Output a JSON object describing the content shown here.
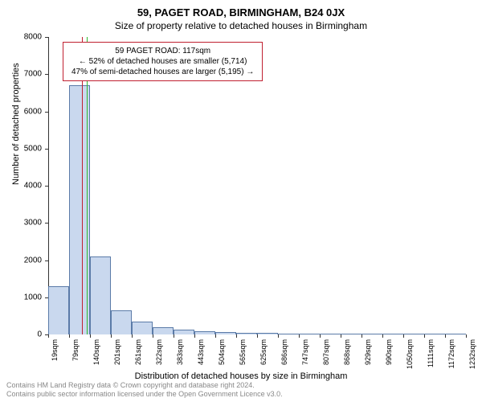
{
  "header": {
    "title": "59, PAGET ROAD, BIRMINGHAM, B24 0JX",
    "subtitle": "Size of property relative to detached houses in Birmingham"
  },
  "chart": {
    "type": "histogram",
    "ylabel": "Number of detached properties",
    "xlabel": "Distribution of detached houses by size in Birmingham",
    "ylim": [
      0,
      8000
    ],
    "yticks": [
      0,
      1000,
      2000,
      3000,
      4000,
      5000,
      6000,
      7000,
      8000
    ],
    "xtick_labels": [
      "19sqm",
      "79sqm",
      "140sqm",
      "201sqm",
      "261sqm",
      "322sqm",
      "383sqm",
      "443sqm",
      "504sqm",
      "565sqm",
      "625sqm",
      "686sqm",
      "747sqm",
      "807sqm",
      "868sqm",
      "929sqm",
      "990sqm",
      "1050sqm",
      "1111sqm",
      "1172sqm",
      "1232sqm"
    ],
    "bar_values": [
      1300,
      6700,
      2100,
      650,
      350,
      200,
      130,
      90,
      60,
      45,
      35,
      25,
      20,
      15,
      12,
      10,
      8,
      6,
      5,
      4
    ],
    "bar_fill": "#c9d8ee",
    "bar_stroke": "#5b7ba8",
    "marker_left_color": "#c02030",
    "marker_right_color": "#2eb82e",
    "marker_left_pos": 0.08,
    "marker_right_pos": 0.093,
    "background_color": "#ffffff"
  },
  "info_box": {
    "line1": "59 PAGET ROAD: 117sqm",
    "line2": "← 52% of detached houses are smaller (5,714)",
    "line3": "47% of semi-detached houses are larger (5,195) →",
    "border_color": "#c02030"
  },
  "footer": {
    "line1": "Contains HM Land Registry data © Crown copyright and database right 2024.",
    "line2": "Contains public sector information licensed under the Open Government Licence v3.0."
  }
}
